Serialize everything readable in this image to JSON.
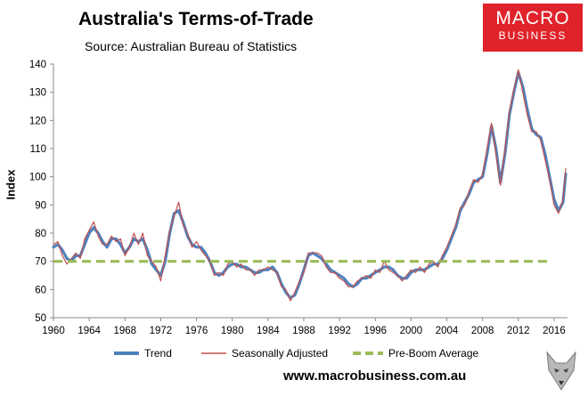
{
  "chart_data": {
    "type": "line",
    "title": "Australia's Terms-of-Trade",
    "subtitle": "Source: Australian Bureau of Statistics",
    "ylabel": "Index",
    "xlabel": "",
    "xlim": [
      1960,
      2017.5
    ],
    "ylim": [
      50,
      140
    ],
    "yticks": [
      "50",
      "60",
      "70",
      "80",
      "90",
      "100",
      "110",
      "120",
      "130",
      "140"
    ],
    "xticks": [
      "1960",
      "1964",
      "1968",
      "1972",
      "1976",
      "1980",
      "1984",
      "1988",
      "1992",
      "1996",
      "2000",
      "2004",
      "2008",
      "2012",
      "2016"
    ],
    "series": [
      {
        "name": "Trend",
        "color": "#4f81bd",
        "points": [
          [
            1960,
            75
          ],
          [
            1960.5,
            76
          ],
          [
            1961,
            74
          ],
          [
            1961.5,
            71
          ],
          [
            1962,
            70
          ],
          [
            1962.5,
            72
          ],
          [
            1963,
            72
          ],
          [
            1963.5,
            76
          ],
          [
            1964,
            80
          ],
          [
            1964.5,
            82
          ],
          [
            1965,
            80
          ],
          [
            1965.5,
            77
          ],
          [
            1966,
            75
          ],
          [
            1966.5,
            78
          ],
          [
            1967,
            78
          ],
          [
            1967.5,
            76
          ],
          [
            1968,
            73
          ],
          [
            1968.5,
            75
          ],
          [
            1969,
            78
          ],
          [
            1969.5,
            77
          ],
          [
            1970,
            78
          ],
          [
            1970.5,
            74
          ],
          [
            1971,
            69
          ],
          [
            1971.5,
            67
          ],
          [
            1972,
            65
          ],
          [
            1972.5,
            70
          ],
          [
            1973,
            80
          ],
          [
            1973.5,
            87
          ],
          [
            1974,
            88
          ],
          [
            1974.5,
            84
          ],
          [
            1975,
            79
          ],
          [
            1975.5,
            76
          ],
          [
            1976,
            75
          ],
          [
            1976.5,
            75
          ],
          [
            1977,
            73
          ],
          [
            1977.5,
            70
          ],
          [
            1978,
            66
          ],
          [
            1978.5,
            65
          ],
          [
            1979,
            66
          ],
          [
            1979.5,
            68
          ],
          [
            1980,
            69
          ],
          [
            1980.5,
            69
          ],
          [
            1981,
            68
          ],
          [
            1981.5,
            68
          ],
          [
            1982,
            67
          ],
          [
            1982.5,
            66
          ],
          [
            1983,
            66
          ],
          [
            1983.5,
            67
          ],
          [
            1984,
            67
          ],
          [
            1984.5,
            68
          ],
          [
            1985,
            66
          ],
          [
            1985.5,
            62
          ],
          [
            1986,
            59
          ],
          [
            1986.5,
            57
          ],
          [
            1987,
            58
          ],
          [
            1987.5,
            62
          ],
          [
            1988,
            67
          ],
          [
            1988.5,
            72
          ],
          [
            1989,
            73
          ],
          [
            1989.5,
            72
          ],
          [
            1990,
            71
          ],
          [
            1990.5,
            69
          ],
          [
            1991,
            67
          ],
          [
            1991.5,
            66
          ],
          [
            1992,
            65
          ],
          [
            1992.5,
            64
          ],
          [
            1993,
            62
          ],
          [
            1993.5,
            61
          ],
          [
            1994,
            62
          ],
          [
            1994.5,
            64
          ],
          [
            1995,
            64
          ],
          [
            1995.5,
            65
          ],
          [
            1996,
            66
          ],
          [
            1996.5,
            67
          ],
          [
            1997,
            68
          ],
          [
            1997.5,
            68
          ],
          [
            1998,
            67
          ],
          [
            1998.5,
            65
          ],
          [
            1999,
            64
          ],
          [
            1999.5,
            64
          ],
          [
            2000,
            66
          ],
          [
            2000.5,
            67
          ],
          [
            2001,
            67
          ],
          [
            2001.5,
            67
          ],
          [
            2002,
            68
          ],
          [
            2002.5,
            69
          ],
          [
            2003,
            69
          ],
          [
            2003.5,
            71
          ],
          [
            2004,
            74
          ],
          [
            2004.5,
            78
          ],
          [
            2005,
            82
          ],
          [
            2005.5,
            88
          ],
          [
            2006,
            91
          ],
          [
            2006.5,
            94
          ],
          [
            2007,
            98
          ],
          [
            2007.5,
            99
          ],
          [
            2008,
            100
          ],
          [
            2008.5,
            108
          ],
          [
            2009,
            118
          ],
          [
            2009.5,
            110
          ],
          [
            2010,
            98
          ],
          [
            2010.5,
            108
          ],
          [
            2011,
            122
          ],
          [
            2011.5,
            130
          ],
          [
            2012,
            137
          ],
          [
            2012.5,
            132
          ],
          [
            2013,
            124
          ],
          [
            2013.5,
            117
          ],
          [
            2014,
            115
          ],
          [
            2014.5,
            114
          ],
          [
            2015,
            108
          ],
          [
            2015.5,
            100
          ],
          [
            2016,
            92
          ],
          [
            2016.5,
            88
          ],
          [
            2017,
            91
          ],
          [
            2017.3,
            101
          ]
        ]
      },
      {
        "name": "Seasonally Adjusted",
        "color": "#c0504d",
        "points": [
          [
            1960,
            76
          ],
          [
            1960.5,
            77
          ],
          [
            1961,
            72
          ],
          [
            1961.5,
            69
          ],
          [
            1962,
            71
          ],
          [
            1962.5,
            73
          ],
          [
            1963,
            71
          ],
          [
            1963.5,
            78
          ],
          [
            1964,
            81
          ],
          [
            1964.5,
            84
          ],
          [
            1965,
            79
          ],
          [
            1965.5,
            76
          ],
          [
            1966,
            76
          ],
          [
            1966.5,
            79
          ],
          [
            1967,
            77
          ],
          [
            1967.5,
            78
          ],
          [
            1968,
            72
          ],
          [
            1968.5,
            75
          ],
          [
            1969,
            80
          ],
          [
            1969.5,
            76
          ],
          [
            1970,
            80
          ],
          [
            1970.5,
            72
          ],
          [
            1971,
            70
          ],
          [
            1971.5,
            68
          ],
          [
            1972,
            63
          ],
          [
            1972.5,
            72
          ],
          [
            1973,
            81
          ],
          [
            1973.5,
            86
          ],
          [
            1974,
            91
          ],
          [
            1974.5,
            83
          ],
          [
            1975,
            80
          ],
          [
            1975.5,
            75
          ],
          [
            1976,
            77
          ],
          [
            1976.5,
            74
          ],
          [
            1977,
            72
          ],
          [
            1977.5,
            70
          ],
          [
            1978,
            65
          ],
          [
            1978.5,
            66
          ],
          [
            1979,
            65
          ],
          [
            1979.5,
            69
          ],
          [
            1980,
            70
          ],
          [
            1980.5,
            68
          ],
          [
            1981,
            69
          ],
          [
            1981.5,
            67
          ],
          [
            1982,
            67
          ],
          [
            1982.5,
            65
          ],
          [
            1983,
            67
          ],
          [
            1983.5,
            67
          ],
          [
            1984,
            68
          ],
          [
            1984.5,
            67
          ],
          [
            1985,
            66
          ],
          [
            1985.5,
            61
          ],
          [
            1986,
            60
          ],
          [
            1986.5,
            56
          ],
          [
            1987,
            59
          ],
          [
            1987.5,
            63
          ],
          [
            1988,
            66
          ],
          [
            1988.5,
            73
          ],
          [
            1989,
            73
          ],
          [
            1989.5,
            73
          ],
          [
            1990,
            72
          ],
          [
            1990.5,
            68
          ],
          [
            1991,
            66
          ],
          [
            1991.5,
            66
          ],
          [
            1992,
            64
          ],
          [
            1992.5,
            63
          ],
          [
            1993,
            61
          ],
          [
            1993.5,
            61
          ],
          [
            1994,
            63
          ],
          [
            1994.5,
            64
          ],
          [
            1995,
            65
          ],
          [
            1995.5,
            64
          ],
          [
            1996,
            67
          ],
          [
            1996.5,
            66
          ],
          [
            1997,
            70
          ],
          [
            1997.5,
            67
          ],
          [
            1998,
            66
          ],
          [
            1998.5,
            65
          ],
          [
            1999,
            63
          ],
          [
            1999.5,
            65
          ],
          [
            2000,
            67
          ],
          [
            2000.5,
            66
          ],
          [
            2001,
            68
          ],
          [
            2001.5,
            66
          ],
          [
            2002,
            69
          ],
          [
            2002.5,
            70
          ],
          [
            2003,
            68
          ],
          [
            2003.5,
            72
          ],
          [
            2004,
            75
          ],
          [
            2004.5,
            79
          ],
          [
            2005,
            83
          ],
          [
            2005.5,
            89
          ],
          [
            2006,
            90
          ],
          [
            2006.5,
            95
          ],
          [
            2007,
            99
          ],
          [
            2007.5,
            98
          ],
          [
            2008,
            101
          ],
          [
            2008.5,
            110
          ],
          [
            2009,
            119
          ],
          [
            2009.5,
            108
          ],
          [
            2010,
            97
          ],
          [
            2010.5,
            110
          ],
          [
            2011,
            123
          ],
          [
            2011.5,
            131
          ],
          [
            2012,
            138
          ],
          [
            2012.5,
            130
          ],
          [
            2013,
            122
          ],
          [
            2013.5,
            116
          ],
          [
            2014,
            116
          ],
          [
            2014.5,
            113
          ],
          [
            2015,
            106
          ],
          [
            2015.5,
            99
          ],
          [
            2016,
            90
          ],
          [
            2016.5,
            87
          ],
          [
            2017,
            92
          ],
          [
            2017.3,
            103
          ]
        ]
      },
      {
        "name": "Pre-Boom Average",
        "color": "#9bbb59",
        "dashed": true,
        "points": [
          [
            1960,
            70
          ],
          [
            2015.3,
            70
          ]
        ]
      }
    ],
    "legend": [
      "Trend",
      "Seasonally Adjusted",
      "Pre-Boom Average"
    ],
    "legend_position": "bottom"
  },
  "branding": {
    "logo_line1": "MACRO",
    "logo_line2": "BUSINESS",
    "website": "www.macrobusiness.com.au"
  }
}
